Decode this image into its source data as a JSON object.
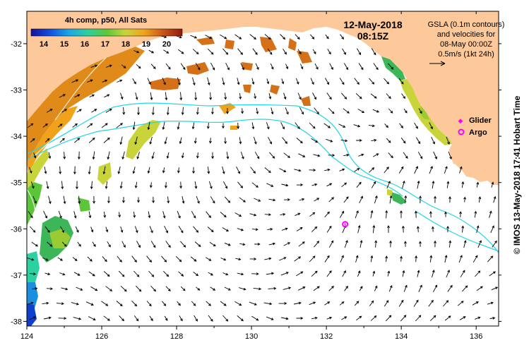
{
  "colorbar": {
    "title": "4h comp, p50, All Sats",
    "ticks": [
      "14",
      "15",
      "16",
      "17",
      "18",
      "19",
      "20"
    ],
    "colors": [
      "#1a0f9a",
      "#0f4fe0",
      "#1aa6e8",
      "#2bd1a0",
      "#5cc63a",
      "#c9d43a",
      "#f0a21a",
      "#c8551a",
      "#8e1b0f"
    ]
  },
  "datetime": {
    "date": "12-May-2018",
    "time": "08:15Z"
  },
  "gsla_legend": {
    "line1": "GSLA (0.1m contours)",
    "line2": "and velocities for",
    "line3": "08-May 00:00Z",
    "line4": "0.5m/s (1kt 24h)"
  },
  "markers": {
    "glider_label": "Glider",
    "argo_label": "Argo",
    "glider_color": "#ff00ff",
    "argo_color": "#ff00ff",
    "argo_position": {
      "lon": 132.5,
      "lat": -35.9
    }
  },
  "axes": {
    "x_ticks": [
      "124",
      "126",
      "128",
      "130",
      "132",
      "134",
      "136"
    ],
    "y_ticks": [
      "-32",
      "-33",
      "-34",
      "-35",
      "-36",
      "-37",
      "-38"
    ],
    "lon_range": [
      124,
      136.6
    ],
    "lat_range": [
      -38.1,
      -31.3
    ]
  },
  "credit": "© IMOS 13-May-2018 17:41 Hobart Time",
  "colors": {
    "land": "#fdc99a",
    "contour": "#22d6e6",
    "arrow": "#000000"
  }
}
